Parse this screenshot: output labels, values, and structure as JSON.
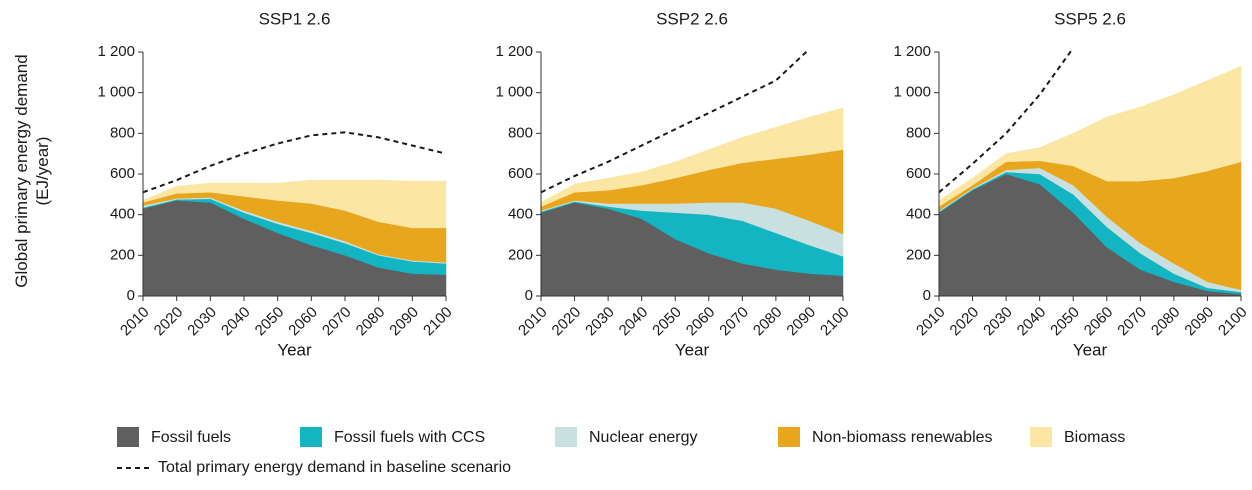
{
  "chart_data": [
    {
      "type": "stacked_area",
      "title": "SSP1 2.6",
      "y_label": "Global primary energy demand (EJ/year)",
      "x_label": "Year",
      "x": [
        2010,
        2020,
        2030,
        2040,
        2050,
        2060,
        2070,
        2080,
        2090,
        2100
      ],
      "xlim": [
        2010,
        2100
      ],
      "xticks": [
        2010,
        2020,
        2030,
        2040,
        2050,
        2060,
        2070,
        2080,
        2090,
        2100
      ],
      "ylim": [
        0,
        1200
      ],
      "yticks": [
        0,
        200,
        400,
        600,
        800,
        {
          "value": 1000,
          "label": "1 000"
        },
        {
          "value": 1200,
          "label": "1 200"
        }
      ],
      "series": [
        {
          "name": "Fossil fuels",
          "color": "#5f5f5f",
          "values": [
            430,
            470,
            460,
            380,
            310,
            250,
            200,
            140,
            110,
            105
          ]
        },
        {
          "name": "Fossil fuels with CCS",
          "color": "#12b5c1",
          "values": [
            5,
            5,
            18,
            30,
            45,
            60,
            60,
            60,
            60,
            55
          ]
        },
        {
          "name": "Nuclear energy",
          "color": "#c8e0e0",
          "values": [
            10,
            5,
            7,
            10,
            10,
            10,
            10,
            5,
            5,
            5
          ]
        },
        {
          "name": "Non-biomass renewables",
          "color": "#e8a61c",
          "values": [
            15,
            25,
            25,
            70,
            105,
            135,
            150,
            160,
            160,
            170
          ]
        },
        {
          "name": "Biomass",
          "color": "#fbe6a4",
          "values": [
            10,
            35,
            45,
            65,
            85,
            115,
            150,
            205,
            230,
            230
          ]
        }
      ],
      "baseline": {
        "name": "Total primary energy demand in baseline scenario",
        "color": "#1a1a1a",
        "values": [
          510,
          570,
          640,
          700,
          750,
          790,
          805,
          780,
          740,
          700
        ]
      }
    },
    {
      "type": "stacked_area",
      "title": "SSP2 2.6",
      "x_label": "Year",
      "x": [
        2010,
        2020,
        2030,
        2040,
        2050,
        2060,
        2070,
        2080,
        2090,
        2100
      ],
      "xlim": [
        2010,
        2100
      ],
      "xticks": [
        2010,
        2020,
        2030,
        2040,
        2050,
        2060,
        2070,
        2080,
        2090,
        2100
      ],
      "ylim": [
        0,
        1200
      ],
      "yticks": [
        0,
        200,
        400,
        600,
        800,
        {
          "value": 1000,
          "label": "1 000"
        },
        {
          "value": 1200,
          "label": "1 200"
        }
      ],
      "series": [
        {
          "name": "Fossil fuels",
          "color": "#5f5f5f",
          "values": [
            410,
            460,
            430,
            380,
            280,
            210,
            160,
            130,
            110,
            100
          ]
        },
        {
          "name": "Fossil fuels with CCS",
          "color": "#12b5c1",
          "values": [
            5,
            5,
            10,
            40,
            130,
            190,
            210,
            180,
            140,
            95
          ]
        },
        {
          "name": "Nuclear energy",
          "color": "#c8e0e0",
          "values": [
            5,
            5,
            15,
            35,
            45,
            60,
            90,
            120,
            120,
            110
          ]
        },
        {
          "name": "Non-biomass renewables",
          "color": "#e8a61c",
          "values": [
            20,
            40,
            65,
            90,
            125,
            160,
            195,
            245,
            325,
            415
          ]
        },
        {
          "name": "Biomass",
          "color": "#fbe6a4",
          "values": [
            20,
            40,
            60,
            65,
            80,
            100,
            125,
            155,
            185,
            205
          ]
        }
      ],
      "baseline": {
        "name": "Total primary energy demand in baseline scenario",
        "color": "#1a1a1a",
        "values": [
          510,
          590,
          660,
          740,
          820,
          900,
          980,
          1060,
          1215,
          null
        ]
      }
    },
    {
      "type": "stacked_area",
      "title": "SSP5 2.6",
      "x_label": "Year",
      "x": [
        2010,
        2020,
        2030,
        2040,
        2050,
        2060,
        2070,
        2080,
        2090,
        2100
      ],
      "xlim": [
        2010,
        2100
      ],
      "xticks": [
        2010,
        2020,
        2030,
        2040,
        2050,
        2060,
        2070,
        2080,
        2090,
        2100
      ],
      "ylim": [
        0,
        1200
      ],
      "yticks": [
        0,
        200,
        400,
        600,
        800,
        {
          "value": 1000,
          "label": "1 000"
        },
        {
          "value": 1200,
          "label": "1 200"
        }
      ],
      "series": [
        {
          "name": "Fossil fuels",
          "color": "#5f5f5f",
          "values": [
            410,
            520,
            600,
            550,
            410,
            240,
            130,
            70,
            25,
            10
          ]
        },
        {
          "name": "Fossil fuels with CCS",
          "color": "#12b5c1",
          "values": [
            5,
            5,
            10,
            50,
            90,
            100,
            80,
            40,
            15,
            10
          ]
        },
        {
          "name": "Nuclear energy",
          "color": "#c8e0e0",
          "values": [
            5,
            5,
            10,
            30,
            45,
            50,
            50,
            50,
            30,
            10
          ]
        },
        {
          "name": "Non-biomass renewables",
          "color": "#e8a61c",
          "values": [
            20,
            15,
            40,
            35,
            95,
            175,
            305,
            420,
            545,
            630
          ]
        },
        {
          "name": "Biomass",
          "color": "#fbe6a4",
          "values": [
            30,
            35,
            40,
            65,
            160,
            315,
            365,
            410,
            445,
            470
          ]
        }
      ],
      "baseline": {
        "name": "Total primary energy demand in baseline scenario",
        "color": "#1a1a1a",
        "values": [
          510,
          650,
          800,
          990,
          1220,
          null,
          null,
          null,
          null,
          null
        ]
      }
    }
  ]
}
